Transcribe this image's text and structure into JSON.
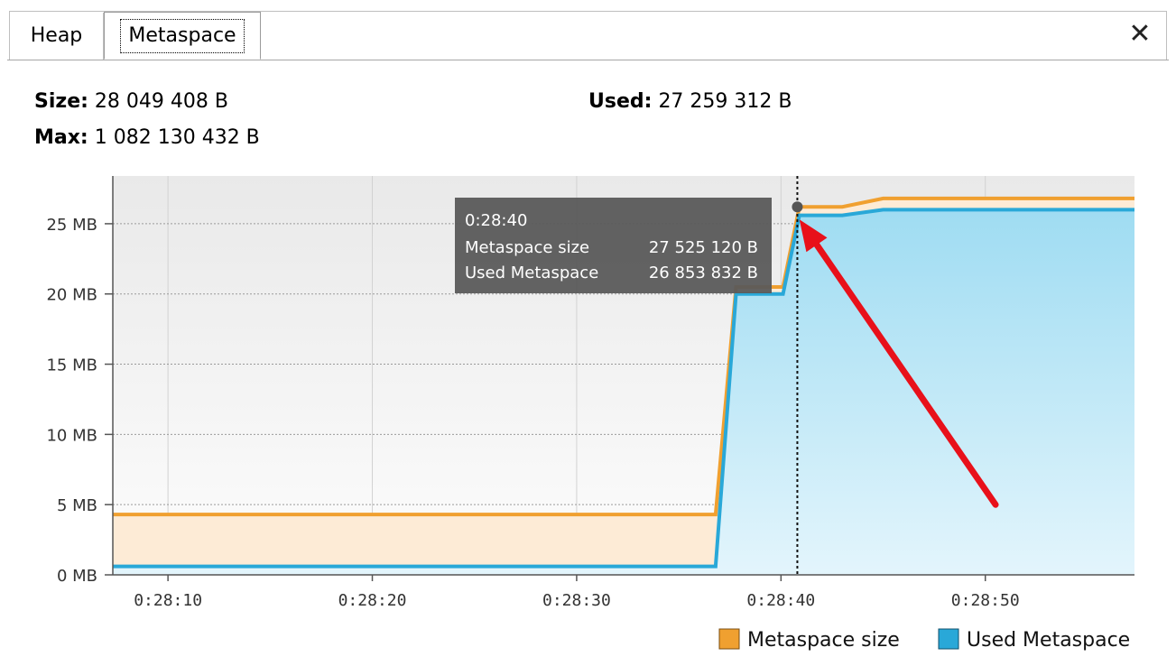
{
  "tabs": [
    {
      "label": "Heap",
      "selected": false
    },
    {
      "label": "Metaspace",
      "selected": true
    }
  ],
  "close_glyph": "✕",
  "stats": {
    "size_label": "Size:",
    "size_value": "28 049 408 B",
    "used_label": "Used:",
    "used_value": "27 259 312 B",
    "max_label": "Max:",
    "max_value": "1 082 130 432 B"
  },
  "chart_data": {
    "type": "area",
    "ylim": [
      0,
      28.4
    ],
    "xlim_seconds": [
      1687.3,
      1737.3
    ],
    "y_ticks": [
      0,
      5,
      10,
      15,
      20,
      25
    ],
    "y_tick_labels": [
      "0 MB",
      "5 MB",
      "10 MB",
      "15 MB",
      "20 MB",
      "25 MB"
    ],
    "x_ticks": [
      1690,
      1700,
      1710,
      1720,
      1730
    ],
    "x_tick_labels": [
      "0:28:10",
      "0:28:20",
      "0:28:30",
      "0:28:40",
      "0:28:50"
    ],
    "grid": true,
    "legend_position": "bottom-right",
    "series": [
      {
        "name": "Metaspace size",
        "color": "#f0a030",
        "x": [
          1687.3,
          1716.8,
          1717.8,
          1720.1,
          1720.9,
          1723.0,
          1725.0,
          1737.3
        ],
        "y": [
          4.3,
          4.3,
          20.5,
          20.5,
          26.2,
          26.2,
          26.8,
          26.8
        ]
      },
      {
        "name": "Used Metaspace",
        "color": "#29a8d8",
        "x": [
          1687.3,
          1716.8,
          1717.8,
          1720.1,
          1720.9,
          1723.0,
          1725.0,
          1737.3
        ],
        "y": [
          0.6,
          0.6,
          20.0,
          20.0,
          25.6,
          25.6,
          26.0,
          26.0
        ]
      }
    ],
    "crosshair_x": 1720.8,
    "tooltip": {
      "time": "0:28:40",
      "rows": [
        {
          "label": "Metaspace size",
          "value": "27 525 120 B"
        },
        {
          "label": "Used Metaspace",
          "value": "26 853 832 B"
        }
      ]
    },
    "annotation": {
      "type": "arrow",
      "color": "#e8101a",
      "from_x": 1730.5,
      "from_y": 5.0,
      "to_x": 1720.9,
      "to_y": 25.3
    }
  }
}
